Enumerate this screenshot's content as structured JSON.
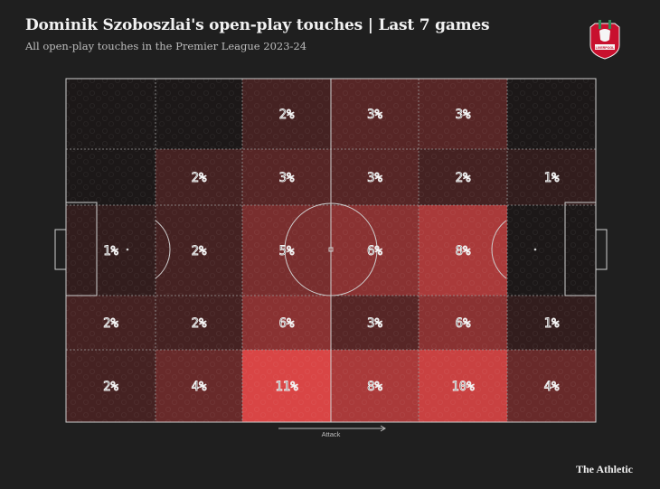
{
  "header": {
    "title": "Dominik Szoboszlai's open-play touches | Last 7 games",
    "subtitle": "All open-play touches in the Premier League 2023-24"
  },
  "crest": {
    "name": "Liverpool",
    "text": "LIVERPOOL"
  },
  "brand": {
    "label": "The Athletic"
  },
  "colors": {
    "background": "#1f1f1f",
    "heat_max": "#d94545",
    "lines": "#cfcfcf",
    "text": "#f2f2f2"
  },
  "chart_data": {
    "type": "heatmap",
    "title": "Dominik Szoboszlai's open-play touches | Last 7 games",
    "subtitle": "All open-play touches in the Premier League 2023-24",
    "direction_label": "Attack",
    "unit": "%",
    "columns": 6,
    "rows": 5,
    "cells": [
      [
        "",
        "",
        "2%",
        "3%",
        "3%",
        ""
      ],
      [
        "",
        "2%",
        "3%",
        "3%",
        "2%",
        "1%"
      ],
      [
        "1%",
        "2%",
        "5%",
        "6%",
        "8%",
        ""
      ],
      [
        "2%",
        "2%",
        "6%",
        "3%",
        "6%",
        "1%"
      ],
      [
        "2%",
        "4%",
        "11%",
        "8%",
        "10%",
        "4%"
      ]
    ],
    "values": [
      [
        0,
        0,
        2,
        3,
        3,
        0
      ],
      [
        0,
        2,
        3,
        3,
        2,
        1
      ],
      [
        1,
        2,
        5,
        6,
        8,
        0
      ],
      [
        2,
        2,
        6,
        3,
        6,
        1
      ],
      [
        2,
        4,
        11,
        8,
        10,
        4
      ]
    ]
  }
}
